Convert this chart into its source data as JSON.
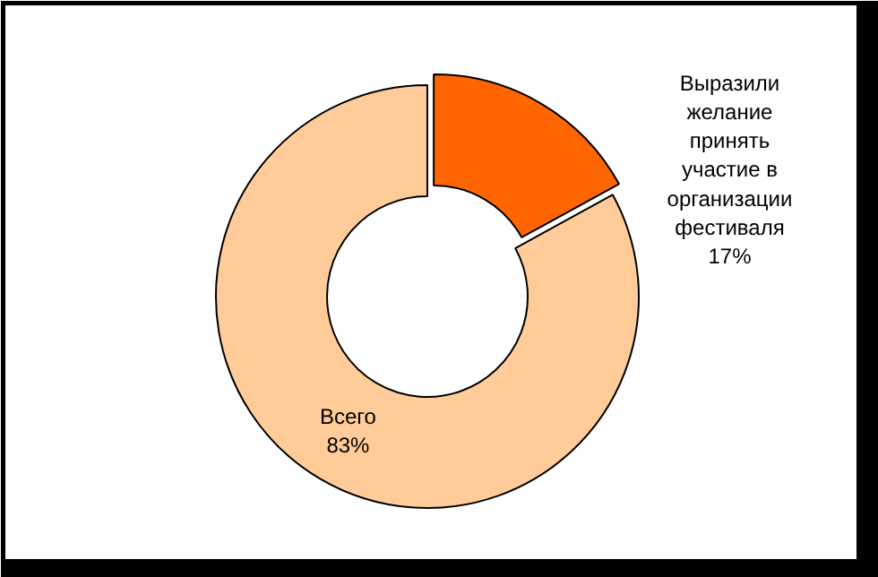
{
  "chart_data": {
    "type": "donut",
    "categories": [
      "Выразили желание принять участие в организации фестиваля",
      "Всего"
    ],
    "values": [
      17,
      83
    ],
    "value_labels": [
      "17%",
      "83%"
    ],
    "colors": [
      "#ff6600",
      "#ffcc99"
    ]
  }
}
